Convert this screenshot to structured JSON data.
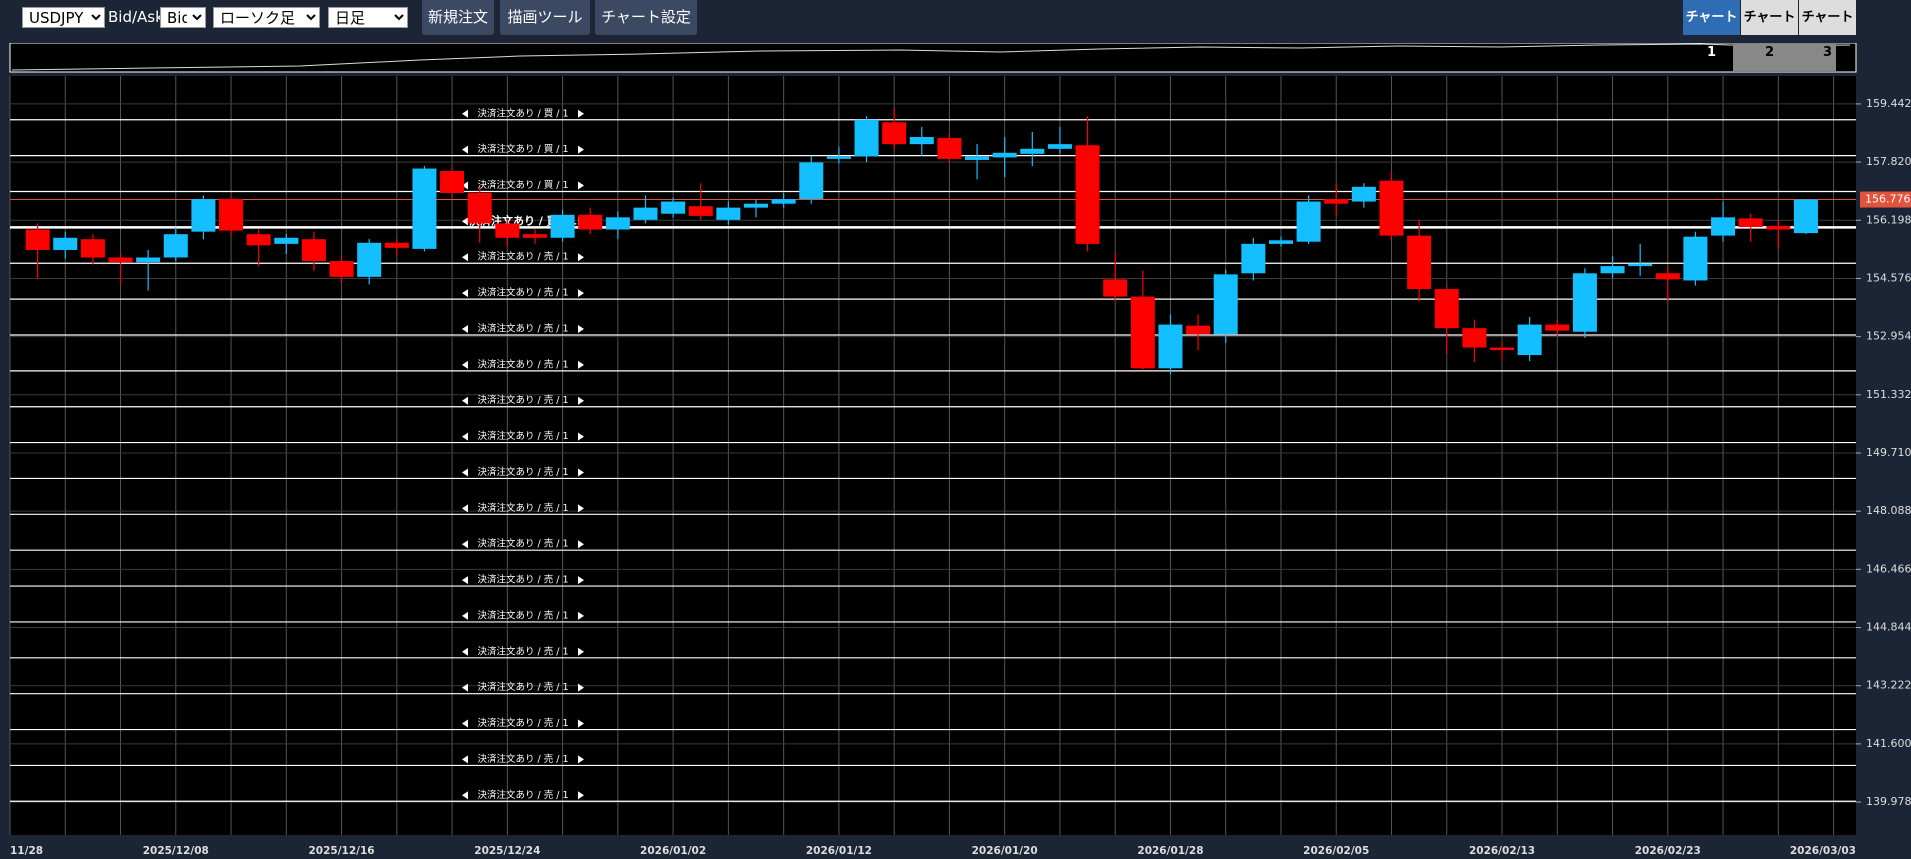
{
  "toolbar": {
    "symbol": "USDJPY",
    "price_type_label": "Bid/Ask",
    "price_type": "Bid",
    "chart_type": "ローソク足",
    "period": "日足",
    "buttons": [
      "新規注文",
      "描画ツール",
      "チャート設定"
    ],
    "tabs": [
      "チャート1",
      "チャート2",
      "チャート3"
    ]
  },
  "chart_data": {
    "type": "candlestick",
    "categories": [
      "11/28",
      null,
      null,
      null,
      null,
      null,
      "2025/12/08",
      null,
      null,
      null,
      null,
      null,
      "2025/12/16",
      null,
      null,
      null,
      null,
      null,
      "2025/12/24",
      null,
      null,
      null,
      null,
      null,
      "2026/01/02",
      null,
      null,
      null,
      null,
      null,
      "2026/01/12",
      null,
      null,
      null,
      null,
      null,
      "2026/01/20",
      null,
      null,
      null,
      null,
      null,
      "2026/01/28",
      null,
      null,
      null,
      null,
      null,
      "2026/02/05",
      null,
      null,
      null,
      null,
      null,
      "2026/02/13",
      null,
      null,
      null,
      null,
      null,
      "2026/02/23",
      null,
      null,
      null,
      null,
      null,
      "2026/03/03"
    ],
    "open": [
      null,
      155.94,
      155.37,
      155.67,
      155.16,
      155.03,
      155.16,
      155.88,
      156.79,
      155.81,
      155.54,
      155.67,
      155.06,
      154.62,
      155.57,
      155.4,
      157.57,
      156.96,
      156.11,
      155.81,
      155.71,
      156.35,
      155.94,
      156.21,
      156.38,
      156.59,
      156.21,
      156.55,
      156.66,
      156.79,
      157.91,
      157.98,
      158.93,
      158.32,
      158.49,
      157.88,
      157.95,
      158.05,
      158.19,
      158.29,
      154.55,
      154.07,
      152.07,
      153.26,
      153.02,
      154.72,
      155.54,
      155.6,
      156.79,
      156.72,
      157.3,
      155.77,
      154.28,
      153.19,
      152.65,
      152.44,
      153.29,
      153.09,
      154.72,
      154.92,
      154.72,
      154.52,
      155.77,
      156.25,
      156.04,
      155.84,
      null
    ],
    "high": [
      null,
      156.11,
      155.88,
      155.81,
      155.26,
      155.37,
      156.01,
      156.89,
      156.89,
      155.94,
      155.81,
      155.88,
      155.2,
      155.67,
      155.67,
      157.71,
      157.68,
      157.13,
      156.21,
      155.94,
      156.49,
      156.55,
      156.45,
      156.89,
      156.83,
      157.23,
      156.72,
      156.79,
      156.96,
      157.98,
      158.25,
      159.1,
      159.34,
      158.8,
      158.59,
      158.32,
      158.52,
      158.66,
      158.8,
      159.1,
      155.3,
      154.79,
      153.57,
      153.57,
      154.82,
      155.71,
      155.74,
      156.89,
      157.23,
      157.23,
      157.57,
      156.21,
      154.35,
      153.43,
      152.82,
      153.5,
      153.43,
      154.86,
      155.2,
      155.54,
      154.92,
      155.88,
      156.72,
      156.38,
      156.21,
      156.79,
      null
    ],
    "low": [
      null,
      154.58,
      155.13,
      154.96,
      154.41,
      154.24,
      155.06,
      155.67,
      155.74,
      154.92,
      155.26,
      154.79,
      154.45,
      154.41,
      155.2,
      155.33,
      156.83,
      155.57,
      155.47,
      155.54,
      155.6,
      155.81,
      155.67,
      156.11,
      156.28,
      156.21,
      156.08,
      156.28,
      156.55,
      156.66,
      157.78,
      157.81,
      158.19,
      157.98,
      157.81,
      157.34,
      157.4,
      157.71,
      158.05,
      155.33,
      153.94,
      152.04,
      151.9,
      152.58,
      152.78,
      154.52,
      155.47,
      155.54,
      156.32,
      156.55,
      155.64,
      153.94,
      152.48,
      152.24,
      152.31,
      152.27,
      152.95,
      152.92,
      154.58,
      154.65,
      153.94,
      154.38,
      155.6,
      155.6,
      155.4,
      155.81,
      null
    ],
    "close": [
      null,
      155.37,
      155.71,
      155.16,
      155.03,
      155.16,
      155.81,
      156.79,
      155.91,
      155.5,
      155.71,
      155.06,
      154.62,
      155.57,
      155.43,
      157.64,
      156.96,
      156.11,
      155.71,
      155.71,
      156.35,
      155.94,
      156.28,
      156.55,
      156.72,
      156.32,
      156.55,
      156.66,
      156.79,
      157.81,
      157.98,
      159.0,
      158.32,
      158.52,
      157.91,
      157.98,
      158.08,
      158.19,
      158.32,
      155.54,
      154.07,
      152.07,
      153.29,
      153.02,
      154.69,
      155.54,
      155.64,
      156.72,
      156.66,
      157.13,
      155.77,
      154.28,
      153.19,
      152.65,
      152.58,
      153.29,
      153.12,
      154.72,
      154.92,
      154.99,
      154.55,
      155.74,
      156.28,
      156.01,
      155.94,
      156.776,
      null
    ],
    "up_color": "#14bfff",
    "down_color": "#ff0000",
    "ylim": [
      139.06,
      160.22
    ],
    "yticks": [
      159.442,
      {
        "value": 157.82,
        "label": "157.820"
      },
      156.198,
      154.576,
      152.954,
      151.332,
      {
        "value": 149.71,
        "label": "149.710"
      },
      148.088,
      146.466,
      144.844,
      143.222,
      {
        "value": 141.6,
        "label": "141.600"
      },
      139.978
    ],
    "current_price": 156.776,
    "current_price_color": "#e0533c",
    "orders": [
      {
        "label": "決済注文あり / 買 / 1",
        "price": 159
      },
      {
        "label": "決済注文あり / 買 / 1",
        "price": 158
      },
      {
        "label": "決済注文あり / 買 / 1",
        "price": 157
      },
      {
        "label": "決済注文あり / 買 / 1",
        "price": 156,
        "highlighted": true
      },
      {
        "label": "決済注文あり / 売 / 1",
        "price": 155
      },
      {
        "label": "決済注文あり / 売 / 1",
        "price": 154
      },
      {
        "label": "決済注文あり / 売 / 1",
        "price": 153
      },
      {
        "label": "決済注文あり / 売 / 1",
        "price": 152
      },
      {
        "label": "決済注文あり / 売 / 1",
        "price": 151
      },
      {
        "label": "決済注文あり / 売 / 1",
        "price": 150
      },
      {
        "label": "決済注文あり / 売 / 1",
        "price": 149
      },
      {
        "label": "決済注文あり / 売 / 1",
        "price": 148
      },
      {
        "label": "決済注文あり / 売 / 1",
        "price": 147
      },
      {
        "label": "決済注文あり / 売 / 1",
        "price": 146
      },
      {
        "label": "決済注文あり / 売 / 1",
        "price": 145
      },
      {
        "label": "決済注文あり / 売 / 1",
        "price": 144
      },
      {
        "label": "決済注文あり / 売 / 1",
        "price": 143
      },
      {
        "label": "決済注文あり / 売 / 1",
        "price": 142
      },
      {
        "label": "決済注文あり / 売 / 1",
        "price": 141
      },
      {
        "label": "決済注文あり / 売 / 1",
        "price": 140
      }
    ]
  }
}
